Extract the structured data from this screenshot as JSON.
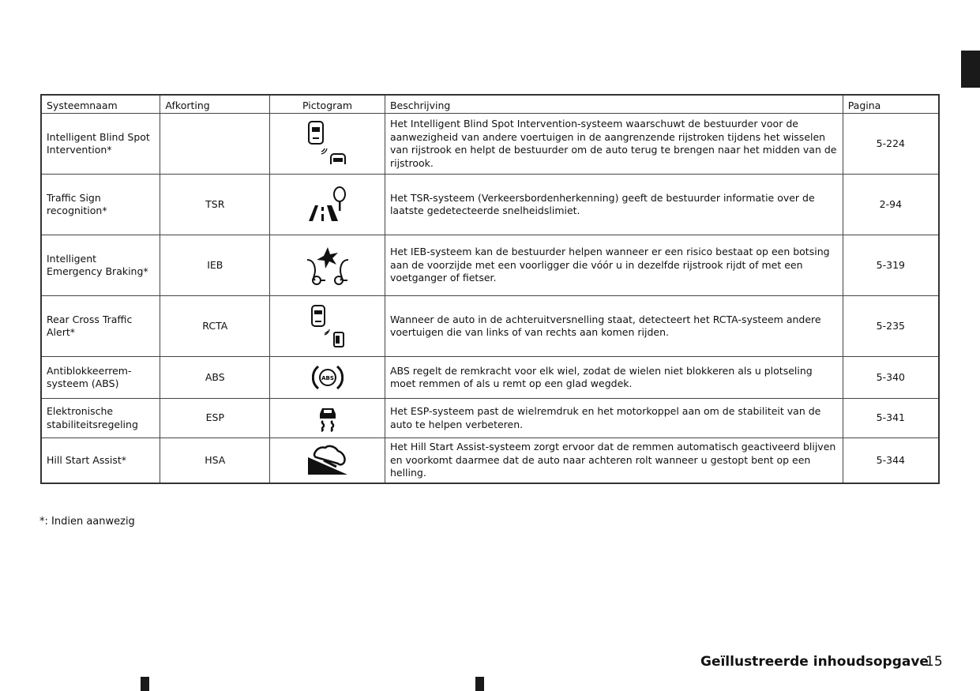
{
  "table": {
    "headers": [
      "Systeemnaam",
      "Afkorting",
      "Pictogram",
      "Beschrijving",
      "Pagina"
    ],
    "rows": [
      {
        "name": "Intelligent Blind Spot Intervention*",
        "abbr": "",
        "icon": "blind-spot-intervention-icon",
        "desc": "Het Intelligent Blind Spot Intervention-systeem waarschuwt de bestuurder voor de aanwezigheid van andere voertuigen in de aangrenzende rijstroken tijdens het wisselen van rijstrook en helpt de bestuurder om de auto terug te brengen naar het midden van de rijstrook.",
        "page": "5-224"
      },
      {
        "name": "Traffic Sign recognition*",
        "abbr": "TSR",
        "icon": "traffic-sign-recognition-icon",
        "desc": "Het TSR-systeem (Verkeersbordenherkenning) geeft de bestuurder informatie over de laatste gedetecteerde snelheidslimiet.",
        "page": "2-94"
      },
      {
        "name": "Intelligent Emergency Braking*",
        "abbr": "IEB",
        "icon": "emergency-braking-icon",
        "desc": "Het IEB-systeem kan de bestuurder helpen wanneer er een risico bestaat op een botsing aan de voorzijde met een voorligger die vóór u in dezelfde rijstrook rijdt of met een voetganger of fietser.",
        "page": "5-319"
      },
      {
        "name": "Rear Cross Traffic Alert*",
        "abbr": "RCTA",
        "icon": "rear-cross-traffic-icon",
        "desc": "Wanneer de auto in de achteruitversnelling staat, detecteert het RCTA-systeem andere voertuigen die van links of van rechts aan komen rijden.",
        "page": "5-235"
      },
      {
        "name": "Antiblokkeerrem-systeem (ABS)",
        "abbr": "ABS",
        "icon": "abs-icon",
        "icon_text": "ABS",
        "desc": "ABS regelt de remkracht voor elk wiel, zodat de wielen niet blokkeren als u plotseling moet remmen of als u remt op een glad wegdek.",
        "page": "5-340"
      },
      {
        "name": "Elektronische stabiliteitsregeling",
        "abbr": "ESP",
        "icon": "skidding-car-icon",
        "desc": "Het ESP-systeem past de wielremdruk en het motorkoppel aan om de stabiliteit van de auto te helpen verbeteren.",
        "page": "5-341"
      },
      {
        "name": "Hill Start Assist*",
        "abbr": "HSA",
        "icon": "hill-start-icon",
        "desc": "Het Hill Start Assist-systeem zorgt ervoor dat de remmen automatisch geactiveerd blijven en voorkomt daarmee dat de auto naar achteren rolt wanneer u gestopt bent op een helling.",
        "page": "5-344"
      }
    ]
  },
  "footnote": "*: Indien aanwezig",
  "footer": {
    "section": "Geïllustreerde inhoudsopgave",
    "page": "15"
  }
}
